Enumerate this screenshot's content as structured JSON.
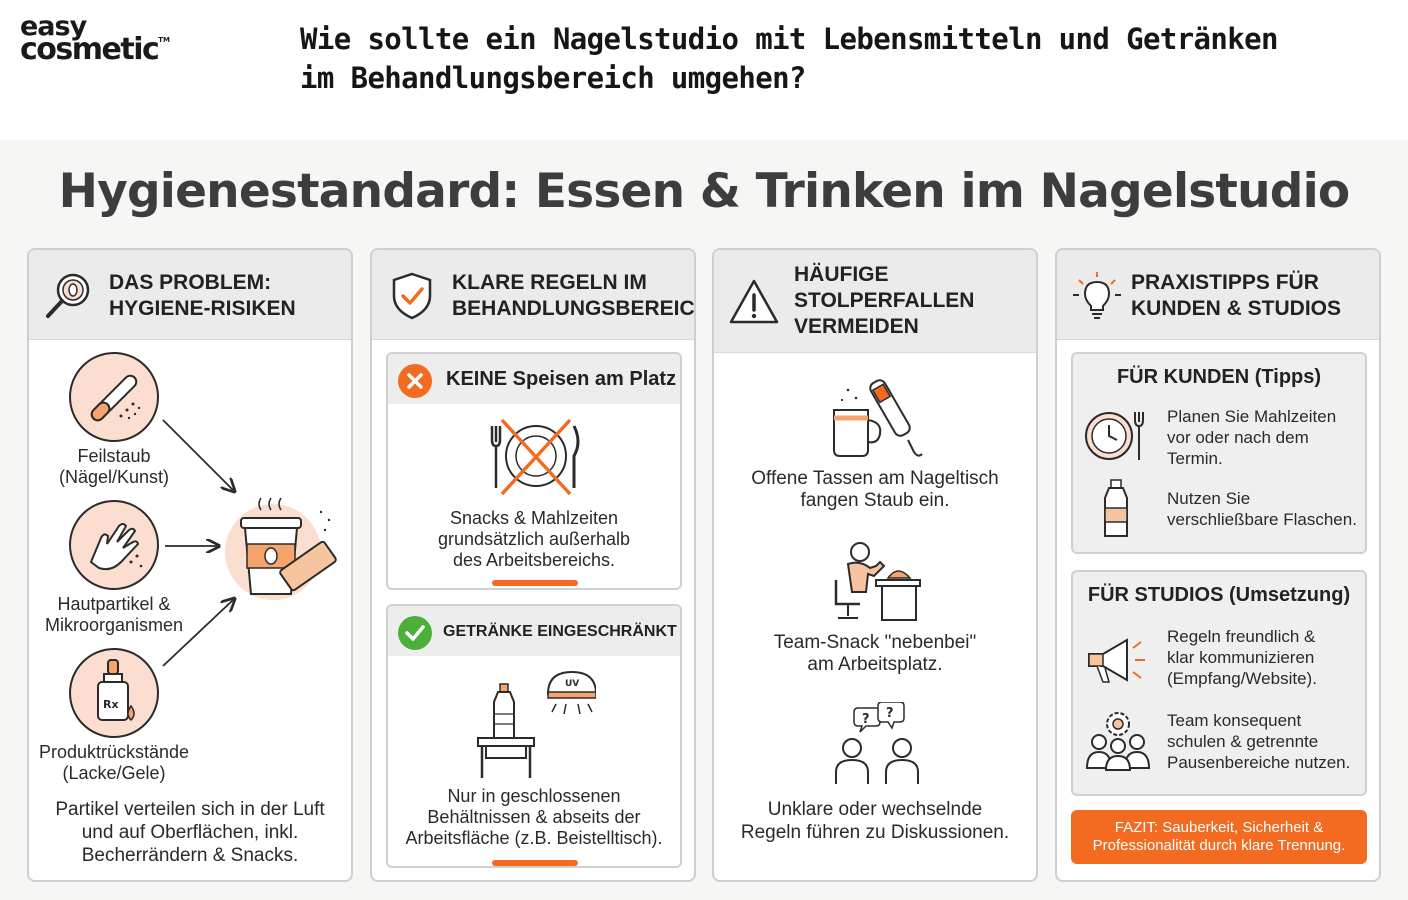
{
  "brand": {
    "line1": "easy",
    "line2": "cosmetic",
    "tm": "TM"
  },
  "question": {
    "line1": "Wie sollte ein Nagelstudio mit Lebensmitteln und Getränken",
    "line2": "im Behandlungsbereich umgehen?"
  },
  "title": "Hygienestandard: Essen & Trinken im Nagelstudio",
  "colors": {
    "accent": "#f26b21",
    "success": "#4caf3a",
    "danger": "#f26b21",
    "peach": "#fcded0"
  },
  "col1": {
    "title_l1": "DAS PROBLEM:",
    "title_l2": "HYGIENE-RISIKEN",
    "icon": "magnifier-nail-icon",
    "items": [
      {
        "l1": "Feilstaub",
        "l2": "(Nägel/Kunst)",
        "icon": "nail-file-icon"
      },
      {
        "l1": "Hautpartikel &",
        "l2": "Mikroorganismen",
        "icon": "hand-icon"
      },
      {
        "l1": "Produktrückstände",
        "l2": "(Lacke/Gele)",
        "icon": "bottle-icon"
      }
    ],
    "target_icon": "coffee-snack-icon",
    "footer_l1": "Partikel verteilen sich in der Luft",
    "footer_l2": "und auf Oberflächen, inkl.",
    "footer_l3": "Becherrändern & Snacks."
  },
  "col2": {
    "title_l1": "KLARE REGELN IM",
    "title_l2": "BEHANDLUNGSBEREICH",
    "icon": "shield-check-icon",
    "rule1": {
      "title": "KEINE Speisen am Platz",
      "icon": "no-food-icon",
      "l1": "Snacks & Mahlzeiten",
      "l2": "grundsätzlich außerhalb",
      "l3": "des Arbeitsbereichs."
    },
    "rule2": {
      "title": "GETRÄNKE EINGESCHRÄNKT",
      "icon": "bottle-table-icon",
      "uv": "UV",
      "l1": "Nur in geschlossenen",
      "l2": "Behältnissen & abseits der",
      "l3": "Arbeitsfläche (z.B. Beistelltisch)."
    }
  },
  "col3": {
    "title_l1": "HÄUFIGE",
    "title_l2": "STOLPERFALLEN",
    "title_l3": "VERMEIDEN",
    "icon": "warning-icon",
    "items": [
      {
        "l1": "Offene Tassen am Nageltisch",
        "l2": "fangen Staub ein.",
        "icon": "mug-drill-icon"
      },
      {
        "l1": "Team-Snack \"nebenbei\"",
        "l2": "am Arbeitsplatz.",
        "icon": "person-eating-icon"
      },
      {
        "l1": "Unklare oder wechselnde",
        "l2": "Regeln führen zu Diskussionen.",
        "icon": "people-question-icon"
      }
    ]
  },
  "col4": {
    "title_l1": "PRAXISTIPPS FÜR",
    "title_l2": "KUNDEN & STUDIOS",
    "icon": "lightbulb-icon",
    "kunden": {
      "title": "FÜR KUNDEN (Tipps)",
      "t1": {
        "l1": "Planen Sie Mahlzeiten",
        "l2": "vor oder nach dem",
        "l3": "Termin.",
        "icon": "clock-fork-icon"
      },
      "t2": {
        "l1": "Nutzen Sie",
        "l2": "verschließbare Flaschen.",
        "icon": "water-bottle-icon"
      }
    },
    "studios": {
      "title": "FÜR STUDIOS (Umsetzung)",
      "t1": {
        "l1": "Regeln freundlich &",
        "l2": "klar kommunizieren",
        "l3": "(Empfang/Website).",
        "icon": "megaphone-icon"
      },
      "t2": {
        "l1": "Team konsequent",
        "l2": "schulen & getrennte",
        "l3": "Pausenbereiche nutzen.",
        "icon": "team-gear-icon"
      }
    },
    "fazit_l1": "FAZIT: Sauberkeit, Sicherheit &",
    "fazit_l2": "Professionalität durch klare Trennung."
  }
}
